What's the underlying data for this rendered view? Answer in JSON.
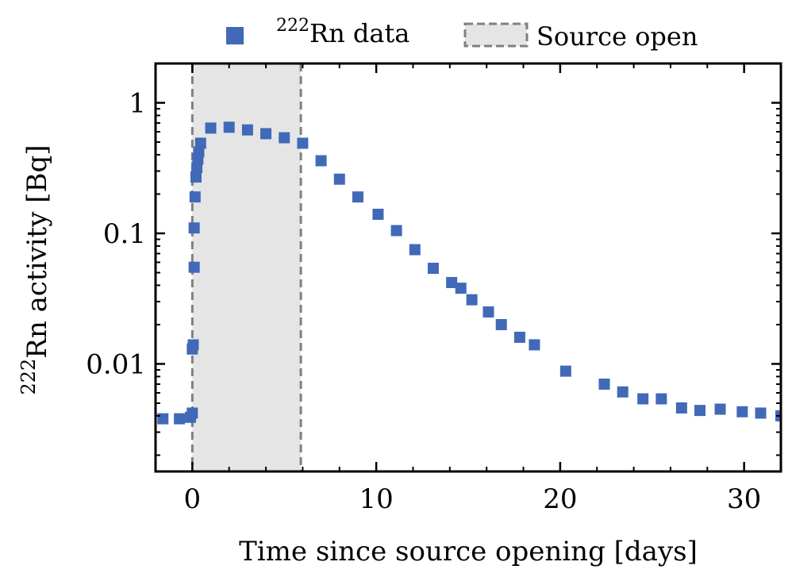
{
  "chart_data": {
    "type": "scatter",
    "xlabel": "Time since source opening [days]",
    "ylabel": {
      "sup": "222",
      "text": "Rn activity [Bq]"
    },
    "xlim": [
      -2,
      32
    ],
    "ylim": [
      0.0015,
      2.0
    ],
    "yscale": "log",
    "x_ticks": [
      0,
      10,
      20,
      30
    ],
    "x_tick_labels": [
      "0",
      "10",
      "20",
      "30"
    ],
    "y_ticks": [
      1,
      0.1,
      0.01
    ],
    "y_tick_labels": [
      "1",
      "0.1",
      "0.01"
    ],
    "grid": false,
    "legend_position": "top, above plot",
    "series": [
      {
        "name": {
          "sup": "222",
          "text": "Rn data"
        },
        "color": "#4169b8",
        "marker": "square",
        "x": [
          -1.6,
          -0.7,
          -0.1,
          0.0,
          0.0,
          0.05,
          0.1,
          0.1,
          0.15,
          0.2,
          0.25,
          0.3,
          0.35,
          0.45,
          1.0,
          2.0,
          3.0,
          4.0,
          5.0,
          6.0,
          7.0,
          8.0,
          9.0,
          10.1,
          11.1,
          12.1,
          13.1,
          14.1,
          14.6,
          15.2,
          16.1,
          16.8,
          17.8,
          18.6,
          20.3,
          22.4,
          23.4,
          24.5,
          25.5,
          26.6,
          27.6,
          28.7,
          29.9,
          30.9,
          32.0
        ],
        "y": [
          0.0038,
          0.0038,
          0.0039,
          0.0042,
          0.013,
          0.014,
          0.055,
          0.11,
          0.19,
          0.27,
          0.32,
          0.37,
          0.42,
          0.49,
          0.64,
          0.65,
          0.62,
          0.58,
          0.54,
          0.49,
          0.36,
          0.26,
          0.19,
          0.14,
          0.105,
          0.075,
          0.054,
          0.042,
          0.038,
          0.031,
          0.025,
          0.02,
          0.016,
          0.014,
          0.0088,
          0.007,
          0.0061,
          0.0054,
          0.0054,
          0.0046,
          0.0044,
          0.0045,
          0.0043,
          0.0042,
          0.004
        ]
      }
    ],
    "shaded_region": {
      "label": "Source open",
      "x_start": 0,
      "x_end": 5.9,
      "fill": "#e5e5e5",
      "edge": "#808080"
    }
  }
}
